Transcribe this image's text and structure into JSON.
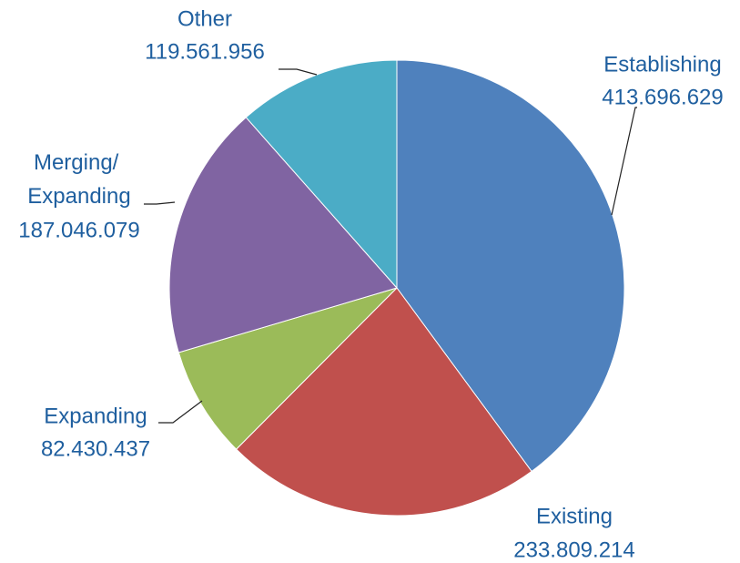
{
  "chart_data": {
    "type": "pie",
    "categories": [
      "Establishing",
      "Existing",
      "Expanding",
      "Merging/ Expanding",
      "Other"
    ],
    "values": [
      413696629,
      233809214,
      82430437,
      187046079,
      119561956
    ],
    "value_labels": [
      "413.696.629",
      "233.809.214",
      "82.430.437",
      "187.046.079",
      "119.561.956"
    ],
    "colors": [
      "#4f81bd",
      "#c0504d",
      "#9bbb59",
      "#8064a2",
      "#4bacc6"
    ]
  }
}
